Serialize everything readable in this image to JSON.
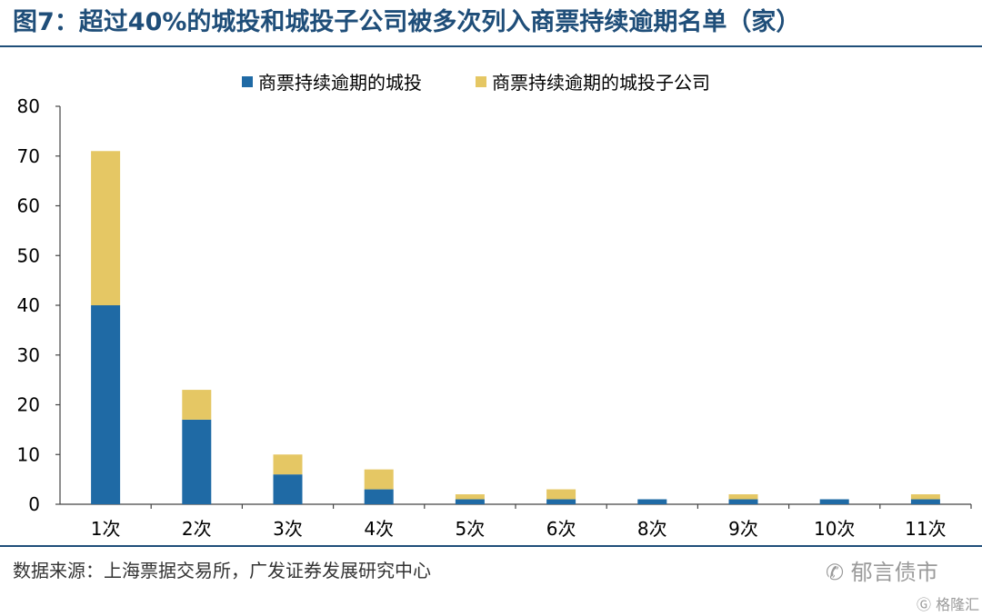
{
  "title": "图7：超过40%的城投和城投子公司被多次列入商票持续逾期名单（家）",
  "source": "数据来源：上海票据交易所，广发证券发展研究中心",
  "watermark": {
    "text": "郁言债市",
    "sub": "格隆汇"
  },
  "colors": {
    "blue": "#1f6aa5",
    "gold": "#e5c764",
    "accent": "#1f4e79"
  },
  "chart_data": {
    "type": "bar",
    "stacked": true,
    "categories": [
      "1次",
      "2次",
      "3次",
      "4次",
      "5次",
      "6次",
      "8次",
      "9次",
      "10次",
      "11次"
    ],
    "series": [
      {
        "name": "商票持续逾期的城投",
        "color": "#1f6aa5",
        "values": [
          40,
          17,
          6,
          3,
          1,
          1,
          1,
          1,
          1,
          1
        ]
      },
      {
        "name": "商票持续逾期的城投子公司",
        "color": "#e5c764",
        "values": [
          31,
          6,
          4,
          4,
          1,
          2,
          0,
          1,
          0,
          1
        ]
      }
    ],
    "ylim": [
      0,
      80
    ],
    "yticks": [
      0,
      10,
      20,
      30,
      40,
      50,
      60,
      70,
      80
    ],
    "xlabel": "",
    "ylabel": "",
    "legend": "top-center",
    "grid": false
  }
}
